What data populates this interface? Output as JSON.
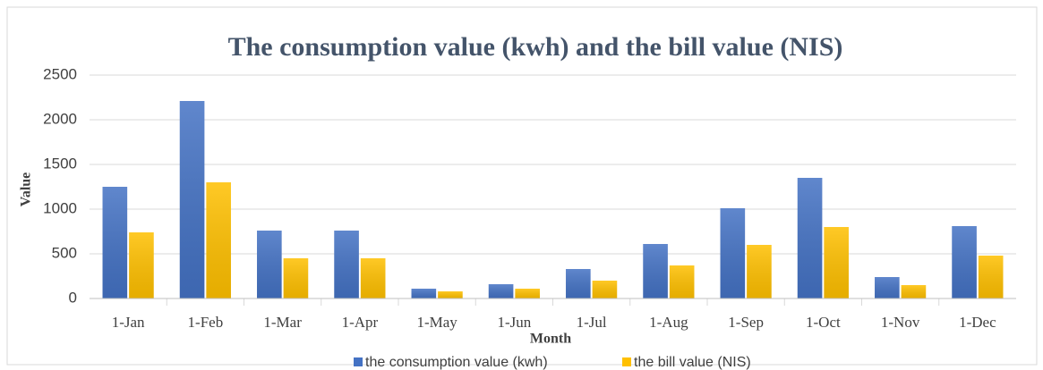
{
  "chart_data": {
    "type": "bar",
    "title": "The  consumption value (kwh) and the bill value (NIS)",
    "x_label": "Month",
    "y_label": "Value",
    "categories": [
      "1-Jan",
      "1-Feb",
      "1-Mar",
      "1-Apr",
      "1-May",
      "1-Jun",
      "1-Jul",
      "1-Aug",
      "1-Sep",
      "1-Oct",
      "1-Nov",
      "1-Dec"
    ],
    "series": [
      {
        "name": "the consumption value (kwh)",
        "color": "#4472c4",
        "values": [
          1250,
          2210,
          760,
          760,
          110,
          160,
          330,
          610,
          1010,
          1350,
          240,
          810
        ]
      },
      {
        "name": "the bill value (NIS)",
        "color": "#ffc000",
        "values": [
          740,
          1300,
          450,
          450,
          80,
          110,
          200,
          370,
          600,
          800,
          150,
          480
        ]
      }
    ],
    "ylim": [
      0,
      2500
    ],
    "yticks": [
      0,
      500,
      1000,
      1500,
      2000,
      2500
    ],
    "grid": true,
    "legend": "bottom"
  }
}
